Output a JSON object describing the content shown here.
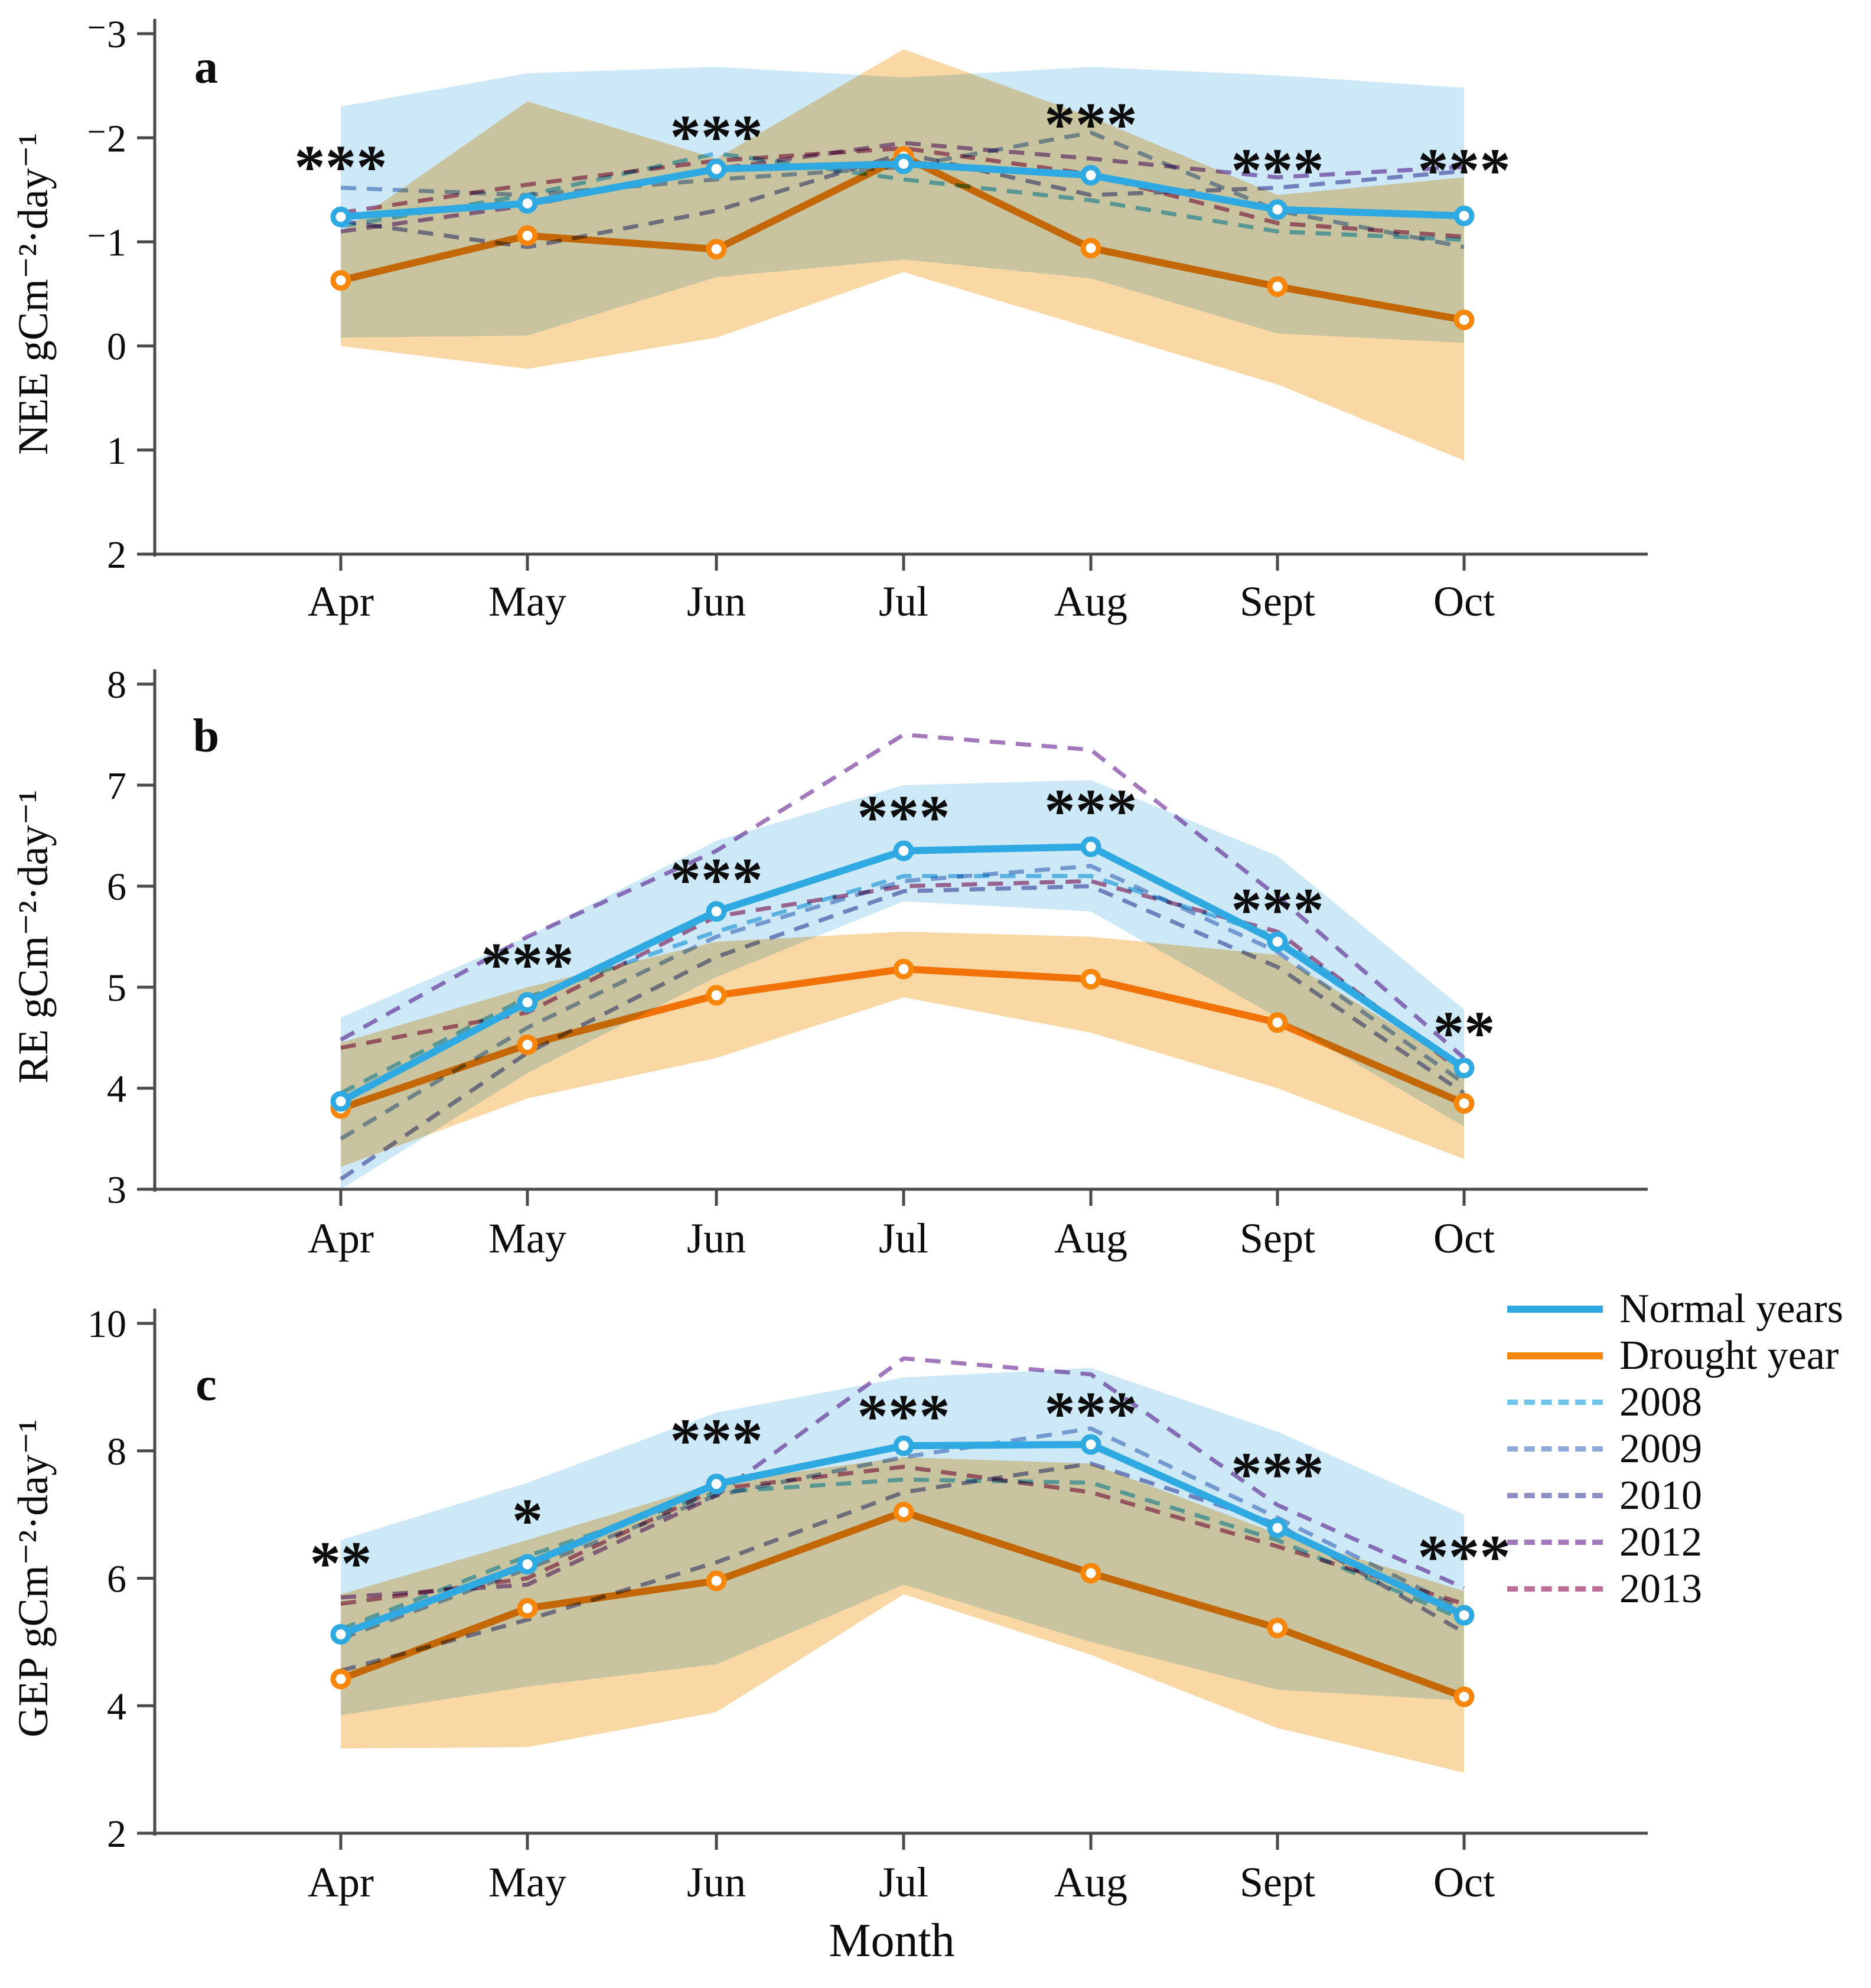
{
  "figure": {
    "xlabel": "Month",
    "months": [
      "Apr",
      "May",
      "Jun",
      "Jul",
      "Aug",
      "Sept",
      "Oct"
    ],
    "colors": {
      "series": {
        "Normal years": "#2FA9E1",
        "Drought year": "#F8860B",
        "2008": "#6FC4EA",
        "2009": "#8FA9D8",
        "2010": "#8C8EC4",
        "2012": "#A478BD",
        "2013": "#BC6E96"
      },
      "bands": {
        "Normal years range": "#CDE8F6",
        "Drought year range": "#FAD8A6"
      },
      "axis": "#4a4a4a",
      "text": "#0c0c0c"
    },
    "legend": {
      "position": "right-of-panel-c-top",
      "entries": [
        {
          "label": "Normal years",
          "style": "solid",
          "color": "#2FA9E1"
        },
        {
          "label": "Drought year",
          "style": "solid",
          "color": "#F8860B"
        },
        {
          "label": "2008",
          "style": "dashed",
          "color": "#6FC4EA"
        },
        {
          "label": "2009",
          "style": "dashed",
          "color": "#8FA9D8"
        },
        {
          "label": "2010",
          "style": "dashed",
          "color": "#8C8EC4"
        },
        {
          "label": "2012",
          "style": "dashed",
          "color": "#A478BD"
        },
        {
          "label": "2013",
          "style": "dashed",
          "color": "#BC6E96"
        }
      ]
    }
  },
  "chart_data": [
    {
      "panel": "a",
      "type": "line",
      "ylabel": "NEE gCm⁻²·day⁻¹",
      "axis_inverted": true,
      "ylim_top_to_bottom": [
        -3,
        2
      ],
      "yticks": [
        -3,
        -2,
        -1,
        0,
        1,
        2
      ],
      "ytick_labels": [
        "⁻3",
        "⁻2",
        "⁻1",
        "0",
        "1",
        "2"
      ],
      "x_categories": [
        "Apr",
        "May",
        "Jun",
        "Jul",
        "Aug",
        "Sept",
        "Oct"
      ],
      "series": [
        {
          "name": "Normal years",
          "style": "solid",
          "values": [
            -1.24,
            -1.37,
            -1.7,
            -1.75,
            -1.64,
            -1.31,
            -1.25
          ]
        },
        {
          "name": "Drought year",
          "style": "solid",
          "values": [
            -0.63,
            -1.06,
            -0.93,
            -1.82,
            -0.94,
            -0.57,
            -0.25
          ]
        },
        {
          "name": "2008",
          "style": "dashed",
          "values": [
            -1.15,
            -1.45,
            -1.85,
            -1.6,
            -1.4,
            -1.1,
            -1.02
          ]
        },
        {
          "name": "2009",
          "style": "dashed",
          "values": [
            -1.52,
            -1.45,
            -1.6,
            -1.72,
            -2.05,
            -1.3,
            -0.95
          ]
        },
        {
          "name": "2010",
          "style": "dashed",
          "values": [
            -1.2,
            -0.95,
            -1.3,
            -1.85,
            -1.45,
            -1.52,
            -1.68
          ]
        },
        {
          "name": "2012",
          "style": "dashed",
          "values": [
            -1.1,
            -1.35,
            -1.7,
            -1.95,
            -1.8,
            -1.62,
            -1.72
          ]
        },
        {
          "name": "2013",
          "style": "dashed",
          "values": [
            -1.28,
            -1.55,
            -1.78,
            -1.9,
            -1.65,
            -1.18,
            -1.05
          ]
        }
      ],
      "bands": [
        {
          "name": "Normal years range",
          "upper": [
            -2.3,
            -2.62,
            -2.68,
            -2.58,
            -2.68,
            -2.6,
            -2.48
          ],
          "lower": [
            -0.08,
            -0.1,
            -0.66,
            -0.83,
            -0.65,
            -0.12,
            -0.03
          ]
        },
        {
          "name": "Drought year range",
          "upper": [
            -1.1,
            -2.35,
            -1.8,
            -2.85,
            -2.2,
            -1.45,
            -1.62
          ],
          "lower": [
            0.0,
            0.22,
            -0.08,
            -0.71,
            -0.17,
            0.37,
            1.1
          ]
        }
      ],
      "significance": [
        {
          "month": "Apr",
          "label": "***",
          "value": -1.85
        },
        {
          "month": "Jun",
          "label": "***",
          "value": -2.14
        },
        {
          "month": "Aug",
          "label": "***",
          "value": -2.26
        },
        {
          "month": "Sept",
          "label": "***",
          "value": -1.82
        },
        {
          "month": "Oct",
          "label": "***",
          "value": -1.82
        }
      ]
    },
    {
      "panel": "b",
      "type": "line",
      "ylabel": "RE gCm⁻²·day⁻¹",
      "axis_inverted": false,
      "ylim_top_to_bottom": [
        8,
        3
      ],
      "yticks": [
        3,
        4,
        5,
        6,
        7,
        8
      ],
      "ytick_labels": [
        "3",
        "4",
        "5",
        "6",
        "7",
        "8"
      ],
      "x_categories": [
        "Apr",
        "May",
        "Jun",
        "Jul",
        "Aug",
        "Sept",
        "Oct"
      ],
      "series": [
        {
          "name": "Normal years",
          "style": "solid",
          "values": [
            3.87,
            4.85,
            5.75,
            6.35,
            6.39,
            5.45,
            4.2
          ]
        },
        {
          "name": "Drought year",
          "style": "solid",
          "values": [
            3.8,
            4.43,
            4.92,
            5.18,
            5.08,
            4.65,
            3.85
          ]
        },
        {
          "name": "2008",
          "style": "dashed",
          "values": [
            3.95,
            4.9,
            5.55,
            6.1,
            6.1,
            5.5,
            4.2
          ]
        },
        {
          "name": "2009",
          "style": "dashed",
          "values": [
            3.5,
            4.6,
            5.5,
            6.05,
            6.2,
            5.35,
            4.05
          ]
        },
        {
          "name": "2010",
          "style": "dashed",
          "values": [
            3.1,
            4.35,
            5.3,
            5.95,
            6.0,
            5.2,
            3.95
          ]
        },
        {
          "name": "2012",
          "style": "dashed",
          "values": [
            4.48,
            5.5,
            6.35,
            7.5,
            7.35,
            5.9,
            4.3
          ]
        },
        {
          "name": "2013",
          "style": "dashed",
          "values": [
            4.4,
            4.75,
            5.7,
            6.0,
            6.05,
            5.55,
            4.15
          ]
        }
      ],
      "bands": [
        {
          "name": "Normal years range",
          "upper": [
            4.7,
            5.5,
            6.45,
            7.0,
            7.05,
            6.3,
            4.78
          ],
          "lower": [
            3.0,
            4.15,
            5.1,
            5.85,
            5.75,
            4.7,
            3.62
          ]
        },
        {
          "name": "Drought year range",
          "upper": [
            4.45,
            5.0,
            5.45,
            5.55,
            5.5,
            5.32,
            4.2
          ],
          "lower": [
            3.22,
            3.9,
            4.3,
            4.9,
            4.55,
            4.0,
            3.3
          ]
        }
      ],
      "significance": [
        {
          "month": "May",
          "label": "***",
          "value": 5.36
        },
        {
          "month": "Jun",
          "label": "***",
          "value": 6.2
        },
        {
          "month": "Jul",
          "label": "***",
          "value": 6.82
        },
        {
          "month": "Aug",
          "label": "***",
          "value": 6.88
        },
        {
          "month": "Sept",
          "label": "***",
          "value": 5.9
        },
        {
          "month": "Oct",
          "label": "**",
          "value": 4.68
        }
      ]
    },
    {
      "panel": "c",
      "type": "line",
      "ylabel": "GEP gCm⁻²·day⁻¹",
      "axis_inverted": false,
      "ylim_top_to_bottom": [
        10,
        2
      ],
      "yticks": [
        2,
        4,
        6,
        8,
        10
      ],
      "ytick_labels": [
        "2",
        "4",
        "6",
        "8",
        "10"
      ],
      "x_categories": [
        "Apr",
        "May",
        "Jun",
        "Jul",
        "Aug",
        "Sept",
        "Oct"
      ],
      "series": [
        {
          "name": "Normal years",
          "style": "solid",
          "values": [
            5.12,
            6.22,
            7.48,
            8.08,
            8.1,
            6.79,
            5.42
          ]
        },
        {
          "name": "Drought year",
          "style": "solid",
          "values": [
            4.42,
            5.53,
            5.96,
            7.04,
            6.08,
            5.22,
            4.14
          ]
        },
        {
          "name": "2008",
          "style": "dashed",
          "values": [
            5.2,
            6.35,
            7.35,
            7.55,
            7.5,
            6.6,
            5.35
          ]
        },
        {
          "name": "2009",
          "style": "dashed",
          "values": [
            5.05,
            6.15,
            7.3,
            7.9,
            8.35,
            6.95,
            5.5
          ]
        },
        {
          "name": "2010",
          "style": "dashed",
          "values": [
            4.55,
            5.35,
            6.25,
            7.35,
            7.8,
            6.85,
            5.15
          ]
        },
        {
          "name": "2012",
          "style": "dashed",
          "values": [
            5.7,
            5.9,
            7.3,
            9.45,
            9.2,
            7.15,
            5.85
          ]
        },
        {
          "name": "2013",
          "style": "dashed",
          "values": [
            5.6,
            6.0,
            7.4,
            7.75,
            7.35,
            6.5,
            5.6
          ]
        }
      ],
      "bands": [
        {
          "name": "Normal years range",
          "upper": [
            6.6,
            7.5,
            8.6,
            9.15,
            9.3,
            8.3,
            7.0
          ],
          "lower": [
            3.85,
            4.3,
            4.65,
            5.9,
            5.0,
            4.25,
            4.08
          ]
        },
        {
          "name": "Drought year range",
          "upper": [
            5.75,
            6.6,
            7.5,
            7.9,
            7.8,
            6.7,
            5.8
          ],
          "lower": [
            3.33,
            3.35,
            3.9,
            5.75,
            4.8,
            3.65,
            2.95
          ]
        }
      ],
      "significance": [
        {
          "month": "Apr",
          "label": "**",
          "value": 6.45
        },
        {
          "month": "May",
          "label": "*",
          "value": 7.12
        },
        {
          "month": "Jun",
          "label": "***",
          "value": 8.38
        },
        {
          "month": "Jul",
          "label": "***",
          "value": 8.76
        },
        {
          "month": "Aug",
          "label": "***",
          "value": 8.8
        },
        {
          "month": "Sept",
          "label": "***",
          "value": 7.85
        },
        {
          "month": "Oct",
          "label": "***",
          "value": 6.55
        }
      ]
    }
  ]
}
